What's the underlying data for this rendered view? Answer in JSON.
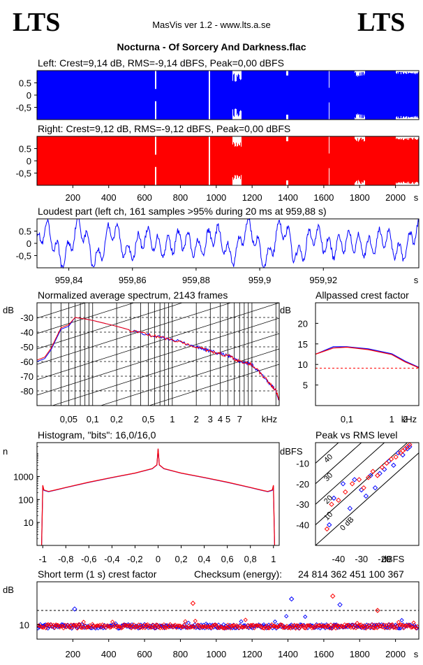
{
  "header": {
    "logo_left": "LTS",
    "logo_right": "LTS",
    "app_title": "MasVis ver 1.2 - www.lts.a.se",
    "file_title": "Nocturna - Of Sorcery And Darkness.flac"
  },
  "colors": {
    "left_channel": "#0000ff",
    "right_channel": "#ff0000",
    "crest_reference": "#ff0000",
    "grid": "#000000"
  },
  "chart_data": [
    {
      "id": "waveform-left",
      "type": "area",
      "title": "Left: Crest=9,14 dB, RMS=-9,14 dBFS, Peak=0,00 dBFS",
      "ylim": [
        -1,
        1
      ],
      "yticks": [
        "0.5",
        "0",
        "-0,5"
      ],
      "x_range_s": [
        0,
        2130
      ],
      "color": "#0000ff",
      "grid": false,
      "notes": "full-scale waveform, quieter segments near 660 s, 960 s and 1090-1130 s"
    },
    {
      "id": "waveform-right",
      "type": "area",
      "title": "Right: Crest=9,12 dB, RMS=-9,12 dBFS, Peak=0,00 dBFS",
      "ylim": [
        -1,
        1
      ],
      "yticks": [
        "0.5",
        "0",
        "-0,5"
      ],
      "x_range_s": [
        0,
        2130
      ],
      "xticks": [
        "200",
        "400",
        "600",
        "800",
        "1000",
        "1200",
        "1400",
        "1600",
        "1800",
        "2000",
        "s"
      ],
      "color": "#ff0000",
      "grid": false
    },
    {
      "id": "loudest-part",
      "type": "line",
      "title": "Loudest part (left  ch, 161 samples >95% during 20 ms at 959,88 s)",
      "ylim": [
        -1,
        1
      ],
      "yticks": [
        "0.5",
        "0",
        "-0,5"
      ],
      "xlim": [
        959.83,
        959.95
      ],
      "xticks": [
        "959,84",
        "959,86",
        "959,88",
        "959,9",
        "959,92",
        "s"
      ],
      "color": "#0000ff"
    },
    {
      "id": "avg-spectrum",
      "type": "line",
      "title": "Normalized average spectrum, 2143 frames",
      "ylabel": "dB",
      "yticks": [
        "-30",
        "-40",
        "-50",
        "-60",
        "-70",
        "-80"
      ],
      "ylim": [
        -90,
        -20
      ],
      "xscale": "log",
      "xticks": [
        "0,05",
        "0,1",
        "0,2",
        "0,5",
        "1",
        "2",
        "3",
        "4",
        "5",
        "7",
        "kHz"
      ],
      "xlim_khz": [
        0.02,
        22
      ],
      "grid": true,
      "series": [
        {
          "color": "#0000ff",
          "x": [
            0.02,
            0.025,
            0.03,
            0.04,
            0.05,
            0.06,
            0.08,
            0.1,
            0.2,
            0.5,
            1,
            2,
            3,
            5,
            7,
            10,
            15,
            20,
            22
          ],
          "y": [
            -60,
            -58,
            -52,
            -38,
            -36,
            -30,
            -31,
            -32,
            -36,
            -42,
            -45,
            -50,
            -53,
            -56,
            -60,
            -62,
            -72,
            -80,
            -87
          ]
        },
        {
          "color": "#ff0000",
          "x": [
            0.02,
            0.025,
            0.03,
            0.04,
            0.05,
            0.06,
            0.08,
            0.1,
            0.2,
            0.5,
            1,
            2,
            3,
            5,
            7,
            10,
            15,
            20,
            22
          ],
          "y": [
            -59,
            -57,
            -51,
            -37,
            -35,
            -30,
            -31,
            -32,
            -36,
            -42,
            -45,
            -50,
            -53,
            -56,
            -60,
            -62,
            -72,
            -80,
            -86
          ]
        }
      ]
    },
    {
      "id": "allpassed-crest",
      "type": "line",
      "title": "Allpassed crest factor",
      "ylabel": "dB",
      "yticks": [
        "20",
        "15",
        "10",
        "5"
      ],
      "ylim": [
        0,
        25
      ],
      "xscale": "log",
      "xticks": [
        "0,1",
        "1",
        "2",
        "kHz"
      ],
      "xlim_khz": [
        0.02,
        4
      ],
      "reference_y": 9.1,
      "series": [
        {
          "color": "#0000ff",
          "x": [
            0.02,
            0.05,
            0.1,
            0.3,
            1,
            2,
            4
          ],
          "y": [
            12.5,
            14.3,
            14.3,
            13.8,
            12.6,
            10.8,
            9.3
          ]
        },
        {
          "color": "#ff0000",
          "x": [
            0.02,
            0.05,
            0.1,
            0.3,
            1,
            2,
            4
          ],
          "y": [
            12.5,
            14.0,
            14.2,
            13.6,
            12.4,
            10.6,
            9.2
          ]
        }
      ]
    },
    {
      "id": "histogram",
      "type": "line",
      "title": "Histogram, \"bits\": 16,0/16,0",
      "ylabel": "n",
      "yscale": "log",
      "yticks": [
        "1000",
        "100",
        "10"
      ],
      "ylim": [
        1,
        30000
      ],
      "xlim": [
        -1.05,
        1.05
      ],
      "xticks": [
        "-1",
        "-0,8",
        "-0,6",
        "-0,4",
        "-0,2",
        "0",
        "0,2",
        "0,4",
        "0,6",
        "0,8",
        "1"
      ],
      "series": [
        {
          "color": "#0000ff",
          "x": [
            -1,
            -0.99,
            -0.95,
            -0.9,
            -0.8,
            -0.6,
            -0.4,
            -0.2,
            -0.05,
            -0.01,
            0,
            0.01,
            0.05,
            0.2,
            0.4,
            0.6,
            0.8,
            0.9,
            0.95,
            0.99,
            1
          ],
          "y": [
            400,
            250,
            220,
            250,
            330,
            560,
            900,
            1400,
            2200,
            3200,
            16000,
            3200,
            2200,
            1400,
            900,
            560,
            330,
            250,
            220,
            250,
            400
          ]
        },
        {
          "color": "#ff0000",
          "x": [
            -1,
            -0.99,
            -0.95,
            -0.9,
            -0.8,
            -0.6,
            -0.4,
            -0.2,
            -0.05,
            -0.01,
            0,
            0.01,
            0.05,
            0.2,
            0.4,
            0.6,
            0.8,
            0.9,
            0.95,
            0.99,
            1
          ],
          "y": [
            420,
            260,
            225,
            255,
            335,
            570,
            910,
            1420,
            2230,
            3250,
            16500,
            3250,
            2230,
            1420,
            910,
            570,
            335,
            255,
            225,
            260,
            420
          ]
        }
      ]
    },
    {
      "id": "peak-vs-rms",
      "type": "scatter",
      "title": "Peak vs RMS level",
      "ylabel": "dBFS",
      "xlabel": "dBFS",
      "yticks": [
        "-10",
        "-20",
        "-30",
        "-40"
      ],
      "xticks": [
        "-40",
        "-30",
        "-20"
      ],
      "xlim": [
        -50,
        -5
      ],
      "ylim": [
        -50,
        0
      ],
      "diagonal_labels": [
        "40",
        "30",
        "20",
        "10",
        "0 dB"
      ],
      "series": [
        {
          "color": "#0000ff",
          "x": [
            -44,
            -42,
            -38,
            -35,
            -33,
            -30,
            -28,
            -26,
            -24,
            -22,
            -20,
            -18,
            -16,
            -14,
            -12,
            -11,
            -10,
            -9
          ],
          "y": [
            -40,
            -27,
            -20,
            -32,
            -18,
            -23,
            -26,
            -16,
            -22,
            -15,
            -13,
            -9,
            -11,
            -5,
            -6,
            -3,
            -3,
            -2
          ]
        },
        {
          "color": "#ff0000",
          "x": [
            -45,
            -43,
            -40,
            -37,
            -34,
            -31,
            -29,
            -27,
            -25,
            -23,
            -21,
            -19,
            -17,
            -15,
            -13,
            -12,
            -11,
            -10,
            -9
          ],
          "y": [
            -42,
            -30,
            -28,
            -24,
            -20,
            -18,
            -22,
            -17,
            -14,
            -16,
            -12,
            -10,
            -8,
            -7,
            -5,
            -4,
            -3,
            -2,
            -1
          ]
        }
      ]
    },
    {
      "id": "short-term-crest",
      "type": "scatter",
      "title": "Short term (1 s) crest factor",
      "ylabel": "dB",
      "yticks": [
        "10"
      ],
      "ylim": [
        5,
        25
      ],
      "x_range_s": [
        0,
        2130
      ],
      "xticks": [
        "200",
        "400",
        "600",
        "800",
        "1000",
        "1200",
        "1400",
        "1600",
        "1800",
        "2000",
        "s"
      ],
      "reference_y": 15,
      "checksum_label": "Checksum (energy):",
      "checksum_value": "24 814 362 451 100 367",
      "outliers": [
        {
          "x": 210,
          "y": 15.5
        },
        {
          "x": 870,
          "y": 17.5
        },
        {
          "x": 1420,
          "y": 19
        },
        {
          "x": 1650,
          "y": 20
        },
        {
          "x": 1690,
          "y": 17
        },
        {
          "x": 1900,
          "y": 15
        }
      ]
    }
  ]
}
